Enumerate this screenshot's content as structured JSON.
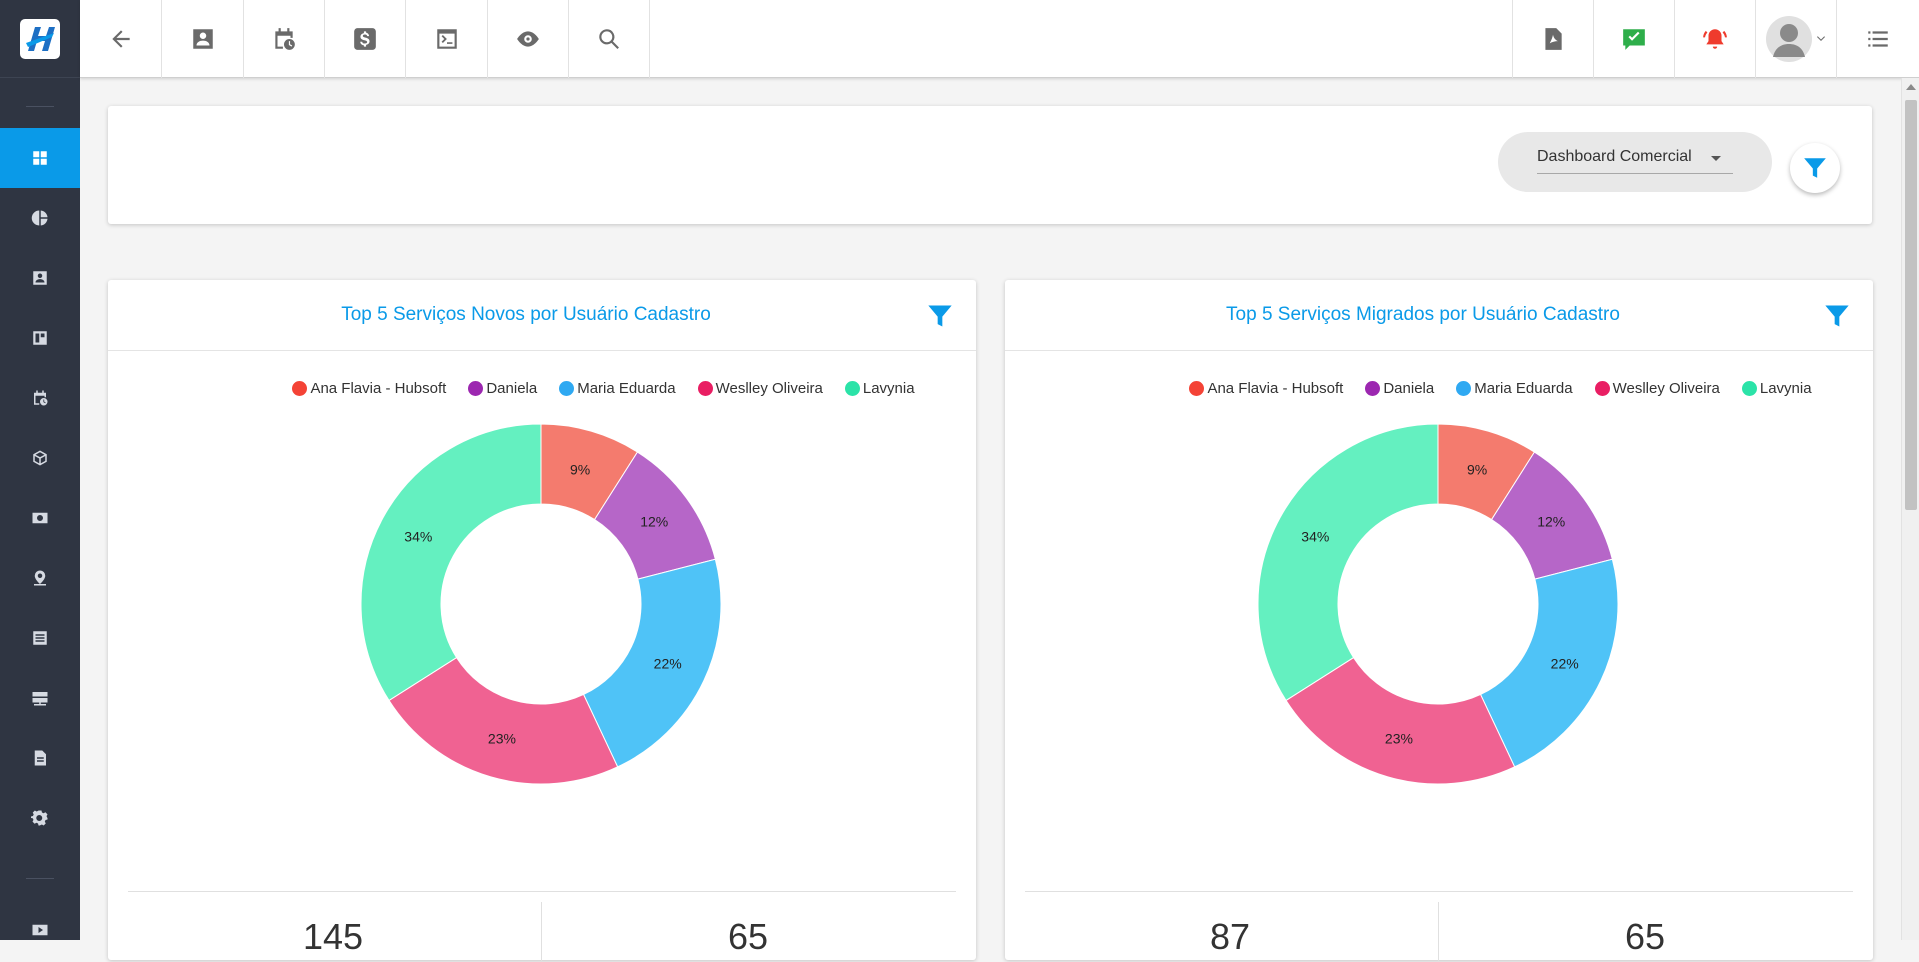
{
  "topbar": {
    "buttons": [
      "back-arrow",
      "customer-card",
      "calendar-clock",
      "dollar",
      "terminal",
      "eye",
      "search"
    ],
    "right_buttons": [
      "pdf",
      "check-chat",
      "alarm-bell",
      "user-avatar",
      "list-menu"
    ]
  },
  "sidebar": {
    "items": [
      "dashboard",
      "pie-chart",
      "contact-card",
      "board",
      "calendar-clock",
      "package",
      "money",
      "map-pin",
      "document-list",
      "server",
      "file",
      "settings",
      "video"
    ],
    "active": "dashboard"
  },
  "filter": {
    "dashboard_select": "Dashboard Comercial"
  },
  "colors": {
    "accent": "#0a9ae8",
    "ana_flavia": "#f44336",
    "daniela": "#9c27b0",
    "maria_eduarda": "#2fa9f2",
    "weslley_oliveira": "#e91e63",
    "lavynia": "#2be3a8"
  },
  "cards": [
    {
      "title": "Top 5 Serviços Novos por Usuário Cadastro",
      "kpis": [
        "145",
        "65"
      ]
    },
    {
      "title": "Top 5 Serviços Migrados por Usuário Cadastro",
      "kpis": [
        "87",
        "65"
      ]
    }
  ],
  "chart_data": [
    {
      "type": "pie",
      "title": "Top 5 Serviços Novos por Usuário Cadastro",
      "categories": [
        "Ana Flavia - Hubsoft",
        "Daniela",
        "Maria Eduarda",
        "Weslley Oliveira",
        "Lavynia"
      ],
      "values": [
        9,
        12,
        22,
        23,
        34
      ],
      "labels": [
        "9%",
        "12%",
        "22%",
        "23%",
        "34%"
      ],
      "colors": [
        "#f47b6e",
        "#b666c8",
        "#4fc3f7",
        "#f06292",
        "#64f0c0"
      ],
      "legend": "top"
    },
    {
      "type": "pie",
      "title": "Top 5 Serviços Migrados por Usuário Cadastro",
      "categories": [
        "Ana Flavia - Hubsoft",
        "Daniela",
        "Maria Eduarda",
        "Weslley Oliveira",
        "Lavynia"
      ],
      "values": [
        9,
        12,
        22,
        23,
        34
      ],
      "labels": [
        "9%",
        "12%",
        "22%",
        "23%",
        "34%"
      ],
      "colors": [
        "#f47b6e",
        "#b666c8",
        "#4fc3f7",
        "#f06292",
        "#64f0c0"
      ],
      "legend": "top"
    }
  ]
}
